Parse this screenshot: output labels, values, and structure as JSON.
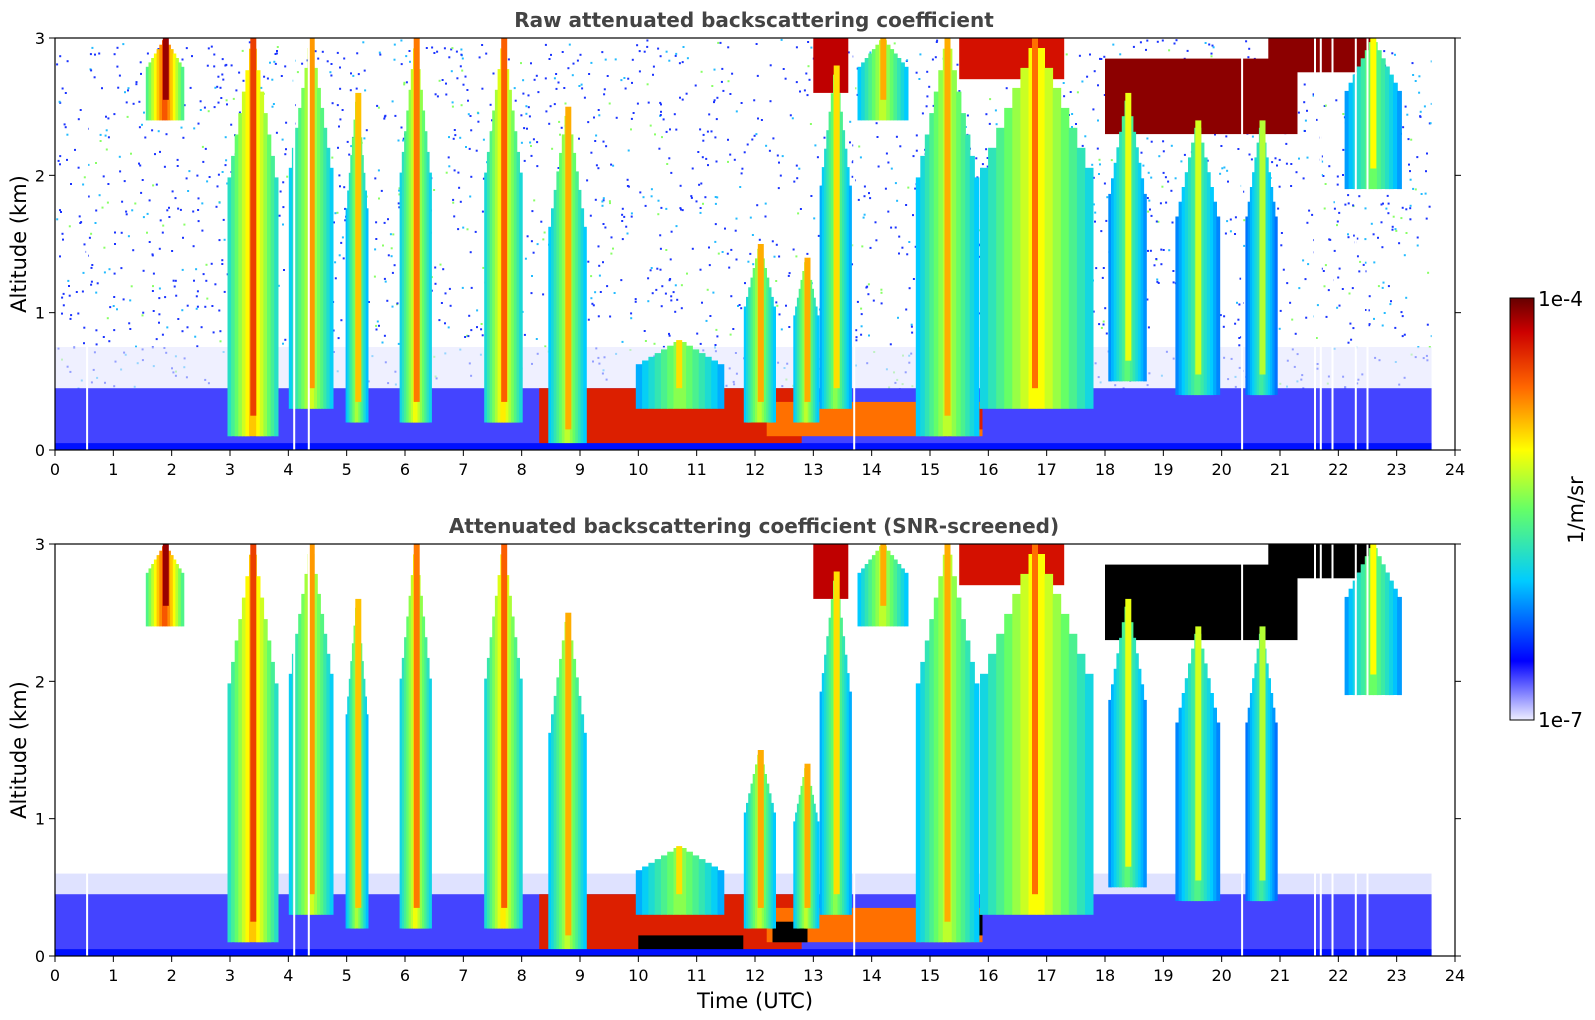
{
  "chart_data": [
    {
      "type": "heatmap",
      "title": "Raw attenuated backscattering coefficient",
      "xlabel": "",
      "ylabel": "Altitude (km)",
      "xlim": [
        0,
        24
      ],
      "ylim": [
        0,
        3
      ],
      "x_ticks": [
        "0",
        "1",
        "2",
        "3",
        "4",
        "5",
        "6",
        "7",
        "8",
        "9",
        "10",
        "11",
        "12",
        "13",
        "14",
        "15",
        "16",
        "17",
        "18",
        "19",
        "20",
        "21",
        "22",
        "23",
        "24"
      ],
      "y_ticks": [
        "0",
        "1",
        "2",
        "3"
      ],
      "data_end_time": 23.6,
      "screened": false,
      "gap_times": [
        0.55,
        4.1,
        4.35,
        13.7,
        20.35,
        21.6,
        21.7,
        21.9,
        22.3,
        22.5
      ],
      "layers": [
        {
          "t0": 0.0,
          "t1": 23.6,
          "z0": 0.0,
          "z1": 0.45,
          "level": 0.1
        },
        {
          "t0": 8.3,
          "t1": 12.8,
          "z0": 0.0,
          "z1": 0.45,
          "level": 0.88
        },
        {
          "t0": 12.2,
          "t1": 15.9,
          "z0": 0.1,
          "z1": 0.35,
          "level": 0.78
        },
        {
          "t0": 15.1,
          "t1": 15.9,
          "z0": 0.15,
          "z1": 0.3,
          "level": 0.88
        },
        {
          "t0": 18.0,
          "t1": 21.3,
          "z0": 2.3,
          "z1": 2.85,
          "level": 0.97
        },
        {
          "t0": 20.8,
          "t1": 22.6,
          "z0": 2.75,
          "z1": 3.0,
          "level": 0.97
        },
        {
          "t0": 13.0,
          "t1": 13.6,
          "z0": 2.6,
          "z1": 3.0,
          "level": 0.93
        },
        {
          "t0": 15.5,
          "t1": 17.3,
          "z0": 2.7,
          "z1": 3.0,
          "level": 0.9
        }
      ],
      "plumes": [
        {
          "t": 1.9,
          "w": 0.6,
          "z0": 2.4,
          "z1": 3.0,
          "level": 0.84
        },
        {
          "t": 3.4,
          "w": 0.8,
          "z0": 0.1,
          "z1": 3.0,
          "level": 0.72
        },
        {
          "t": 4.4,
          "w": 0.7,
          "z0": 0.3,
          "z1": 3.0,
          "level": 0.62
        },
        {
          "t": 5.2,
          "w": 0.35,
          "z0": 0.2,
          "z1": 2.6,
          "level": 0.58
        },
        {
          "t": 6.2,
          "w": 0.5,
          "z0": 0.2,
          "z1": 3.0,
          "level": 0.65
        },
        {
          "t": 7.7,
          "w": 0.6,
          "z0": 0.2,
          "z1": 3.0,
          "level": 0.68
        },
        {
          "t": 8.8,
          "w": 0.6,
          "z0": 0.0,
          "z1": 2.5,
          "level": 0.6
        },
        {
          "t": 10.7,
          "w": 1.4,
          "z0": 0.3,
          "z1": 0.8,
          "level": 0.55
        },
        {
          "t": 12.1,
          "w": 0.5,
          "z0": 0.2,
          "z1": 1.5,
          "level": 0.6
        },
        {
          "t": 12.9,
          "w": 0.4,
          "z0": 0.2,
          "z1": 1.4,
          "level": 0.6
        },
        {
          "t": 13.4,
          "w": 0.5,
          "z0": 0.3,
          "z1": 2.8,
          "level": 0.55
        },
        {
          "t": 14.2,
          "w": 0.8,
          "z0": 2.4,
          "z1": 3.0,
          "level": 0.6
        },
        {
          "t": 15.3,
          "w": 1.0,
          "z0": 0.1,
          "z1": 3.0,
          "level": 0.6
        },
        {
          "t": 16.8,
          "w": 1.8,
          "z0": 0.3,
          "z1": 3.0,
          "level": 0.66
        },
        {
          "t": 18.4,
          "w": 0.6,
          "z0": 0.5,
          "z1": 2.6,
          "level": 0.5
        },
        {
          "t": 19.6,
          "w": 0.7,
          "z0": 0.4,
          "z1": 2.4,
          "level": 0.48
        },
        {
          "t": 20.7,
          "w": 0.5,
          "z0": 0.4,
          "z1": 2.4,
          "level": 0.45
        },
        {
          "t": 22.6,
          "w": 0.9,
          "z0": 1.9,
          "z1": 3.0,
          "level": 0.52
        }
      ]
    },
    {
      "type": "heatmap",
      "title": "Attenuated backscattering coefficient (SNR-screened)",
      "xlabel": "Time (UTC)",
      "ylabel": "Altitude (km)",
      "xlim": [
        0,
        24
      ],
      "ylim": [
        0,
        3
      ],
      "x_ticks": [
        "0",
        "1",
        "2",
        "3",
        "4",
        "5",
        "6",
        "7",
        "8",
        "9",
        "10",
        "11",
        "12",
        "13",
        "14",
        "15",
        "16",
        "17",
        "18",
        "19",
        "20",
        "21",
        "22",
        "23",
        "24"
      ],
      "y_ticks": [
        "0",
        "1",
        "2",
        "3"
      ],
      "data_end_time": 23.6,
      "screened": true,
      "gap_times": [
        0.55,
        4.1,
        4.35,
        13.7,
        20.35,
        21.6,
        21.7,
        21.9,
        22.3,
        22.5
      ],
      "layers": [
        {
          "t0": 0.0,
          "t1": 23.6,
          "z0": 0.0,
          "z1": 0.45,
          "level": 0.1
        },
        {
          "t0": 8.3,
          "t1": 12.8,
          "z0": 0.0,
          "z1": 0.45,
          "level": 0.88
        },
        {
          "t0": 12.2,
          "t1": 15.9,
          "z0": 0.1,
          "z1": 0.35,
          "level": 0.78
        },
        {
          "t0": 15.1,
          "t1": 15.9,
          "z0": 0.15,
          "z1": 0.3,
          "level": 1.0
        },
        {
          "t0": 10.0,
          "t1": 11.8,
          "z0": 0.0,
          "z1": 0.15,
          "level": 1.0
        },
        {
          "t0": 12.3,
          "t1": 12.9,
          "z0": 0.1,
          "z1": 0.25,
          "level": 1.0
        },
        {
          "t0": 18.0,
          "t1": 21.3,
          "z0": 2.3,
          "z1": 2.85,
          "level": 1.0
        },
        {
          "t0": 20.8,
          "t1": 22.6,
          "z0": 2.75,
          "z1": 3.0,
          "level": 1.0
        },
        {
          "t0": 13.0,
          "t1": 13.6,
          "z0": 2.6,
          "z1": 3.0,
          "level": 0.93
        },
        {
          "t0": 15.5,
          "t1": 17.3,
          "z0": 2.7,
          "z1": 3.0,
          "level": 0.9
        }
      ],
      "plumes": [
        {
          "t": 1.9,
          "w": 0.6,
          "z0": 2.4,
          "z1": 3.0,
          "level": 0.84
        },
        {
          "t": 3.4,
          "w": 0.8,
          "z0": 0.1,
          "z1": 3.0,
          "level": 0.72
        },
        {
          "t": 4.4,
          "w": 0.7,
          "z0": 0.3,
          "z1": 3.0,
          "level": 0.62
        },
        {
          "t": 5.2,
          "w": 0.35,
          "z0": 0.2,
          "z1": 2.6,
          "level": 0.58
        },
        {
          "t": 6.2,
          "w": 0.5,
          "z0": 0.2,
          "z1": 3.0,
          "level": 0.65
        },
        {
          "t": 7.7,
          "w": 0.6,
          "z0": 0.2,
          "z1": 3.0,
          "level": 0.68
        },
        {
          "t": 8.8,
          "w": 0.6,
          "z0": 0.0,
          "z1": 2.5,
          "level": 0.6
        },
        {
          "t": 10.7,
          "w": 1.4,
          "z0": 0.3,
          "z1": 0.8,
          "level": 0.55
        },
        {
          "t": 12.1,
          "w": 0.5,
          "z0": 0.2,
          "z1": 1.5,
          "level": 0.6
        },
        {
          "t": 12.9,
          "w": 0.4,
          "z0": 0.2,
          "z1": 1.4,
          "level": 0.6
        },
        {
          "t": 13.4,
          "w": 0.5,
          "z0": 0.3,
          "z1": 2.8,
          "level": 0.55
        },
        {
          "t": 14.2,
          "w": 0.8,
          "z0": 2.4,
          "z1": 3.0,
          "level": 0.6
        },
        {
          "t": 15.3,
          "w": 1.0,
          "z0": 0.1,
          "z1": 3.0,
          "level": 0.6
        },
        {
          "t": 16.8,
          "w": 1.8,
          "z0": 0.3,
          "z1": 3.0,
          "level": 0.66
        },
        {
          "t": 18.4,
          "w": 0.6,
          "z0": 0.5,
          "z1": 2.6,
          "level": 0.5
        },
        {
          "t": 19.6,
          "w": 0.7,
          "z0": 0.4,
          "z1": 2.4,
          "level": 0.48
        },
        {
          "t": 20.7,
          "w": 0.5,
          "z0": 0.4,
          "z1": 2.4,
          "level": 0.45
        },
        {
          "t": 22.6,
          "w": 0.9,
          "z0": 1.9,
          "z1": 3.0,
          "level": 0.52
        }
      ]
    }
  ],
  "colorbar": {
    "label": "1/m/sr",
    "max_label": "1e-4",
    "min_label": "1e-7",
    "scale": "log",
    "range": [
      1e-07,
      0.0001
    ],
    "stops": [
      "#eeeeff",
      "#0000ff",
      "#00ccff",
      "#66ff66",
      "#ffff00",
      "#ff6600",
      "#cc0000",
      "#660000"
    ]
  }
}
